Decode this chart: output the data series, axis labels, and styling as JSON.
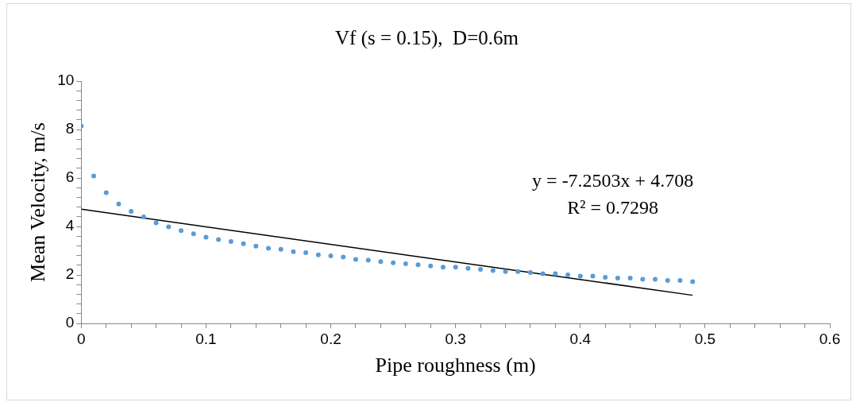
{
  "chart_data": {
    "type": "scatter",
    "title": "Vf (s = 0.15),  D=0.6m",
    "xlabel": "Pipe roughness (m)",
    "ylabel": "Mean Velocity, m/s",
    "xlim": [
      0,
      0.6
    ],
    "ylim": [
      0,
      10
    ],
    "xticks": [
      0,
      {
        "value": 0.02,
        "label": null
      },
      {
        "value": 0.04,
        "label": null
      },
      {
        "value": 0.06,
        "label": null
      },
      {
        "value": 0.08,
        "label": null
      },
      0.1,
      {
        "value": 0.12,
        "label": null
      },
      {
        "value": 0.14,
        "label": null
      },
      {
        "value": 0.16,
        "label": null
      },
      {
        "value": 0.18,
        "label": null
      },
      0.2,
      {
        "value": 0.22,
        "label": null
      },
      {
        "value": 0.24,
        "label": null
      },
      {
        "value": 0.26,
        "label": null
      },
      {
        "value": 0.28,
        "label": null
      },
      0.3,
      {
        "value": 0.32,
        "label": null
      },
      {
        "value": 0.34,
        "label": null
      },
      {
        "value": 0.36,
        "label": null
      },
      {
        "value": 0.38,
        "label": null
      },
      0.4,
      {
        "value": 0.42,
        "label": null
      },
      {
        "value": 0.44,
        "label": null
      },
      {
        "value": 0.46,
        "label": null
      },
      {
        "value": 0.48,
        "label": null
      },
      0.5,
      {
        "value": 0.52,
        "label": null
      },
      {
        "value": 0.54,
        "label": null
      },
      {
        "value": 0.56,
        "label": null
      },
      {
        "value": 0.58,
        "label": null
      },
      0.6
    ],
    "yticks": [
      0,
      {
        "value": 0.4,
        "label": null
      },
      {
        "value": 0.8,
        "label": null
      },
      {
        "value": 1.2,
        "label": null
      },
      {
        "value": 1.6,
        "label": null
      },
      2,
      {
        "value": 2.4,
        "label": null
      },
      {
        "value": 2.8,
        "label": null
      },
      {
        "value": 3.2,
        "label": null
      },
      {
        "value": 3.6,
        "label": null
      },
      4,
      {
        "value": 4.4,
        "label": null
      },
      {
        "value": 4.8,
        "label": null
      },
      {
        "value": 5.2,
        "label": null
      },
      {
        "value": 5.6,
        "label": null
      },
      6,
      {
        "value": 6.4,
        "label": null
      },
      {
        "value": 6.8,
        "label": null
      },
      {
        "value": 7.2,
        "label": null
      },
      {
        "value": 7.6,
        "label": null
      },
      8,
      {
        "value": 8.4,
        "label": null
      },
      {
        "value": 8.8,
        "label": null
      },
      {
        "value": 9.2,
        "label": null
      },
      {
        "value": 9.6,
        "label": null
      },
      10
    ],
    "grid": false,
    "legend": false,
    "annotations": [
      "y = -7.2503x + 4.708",
      "R² = 0.7298"
    ],
    "series": [
      {
        "color": "#5b9bd5",
        "marker": "circle",
        "x": [
          0,
          0.01,
          0.02,
          0.03,
          0.04,
          0.05,
          0.06,
          0.07,
          0.08,
          0.09,
          0.1,
          0.11,
          0.12,
          0.13,
          0.14,
          0.15,
          0.16,
          0.17,
          0.18,
          0.19,
          0.2,
          0.21,
          0.22,
          0.23,
          0.24,
          0.25,
          0.26,
          0.27,
          0.28,
          0.29,
          0.3,
          0.31,
          0.32,
          0.33,
          0.34,
          0.35,
          0.36,
          0.37,
          0.38,
          0.39,
          0.4,
          0.41,
          0.42,
          0.43,
          0.44,
          0.45,
          0.46,
          0.47,
          0.48,
          0.49
        ],
        "values": [
          8.15,
          6.08,
          5.39,
          4.93,
          4.62,
          4.39,
          4.15,
          3.98,
          3.83,
          3.7,
          3.56,
          3.46,
          3.38,
          3.29,
          3.19,
          3.1,
          3.06,
          2.96,
          2.92,
          2.83,
          2.79,
          2.74,
          2.64,
          2.61,
          2.55,
          2.5,
          2.46,
          2.42,
          2.37,
          2.32,
          2.32,
          2.27,
          2.23,
          2.18,
          2.14,
          2.14,
          2.1,
          2.05,
          2.05,
          2.0,
          1.95,
          1.95,
          1.9,
          1.87,
          1.87,
          1.82,
          1.82,
          1.77,
          1.77,
          1.72
        ]
      },
      {
        "type": "line",
        "color": "#000000",
        "marker": "none",
        "line_style": "solid",
        "x": [
          0,
          0.49
        ],
        "values": [
          4.71,
          1.16
        ]
      }
    ]
  }
}
